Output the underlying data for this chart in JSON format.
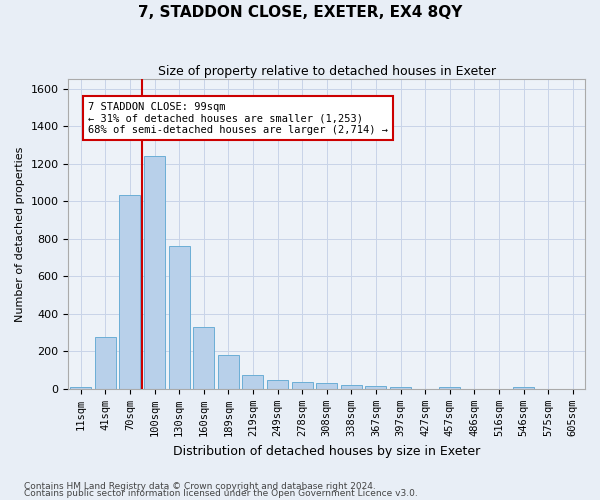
{
  "title": "7, STADDON CLOSE, EXETER, EX4 8QY",
  "subtitle": "Size of property relative to detached houses in Exeter",
  "xlabel": "Distribution of detached houses by size in Exeter",
  "ylabel": "Number of detached properties",
  "footer_line1": "Contains HM Land Registry data © Crown copyright and database right 2024.",
  "footer_line2": "Contains public sector information licensed under the Open Government Licence v3.0.",
  "categories": [
    "11sqm",
    "41sqm",
    "70sqm",
    "100sqm",
    "130sqm",
    "160sqm",
    "189sqm",
    "219sqm",
    "249sqm",
    "278sqm",
    "308sqm",
    "338sqm",
    "367sqm",
    "397sqm",
    "427sqm",
    "457sqm",
    "486sqm",
    "516sqm",
    "546sqm",
    "575sqm",
    "605sqm"
  ],
  "values": [
    10,
    275,
    1035,
    1240,
    760,
    330,
    180,
    75,
    45,
    38,
    30,
    20,
    15,
    10,
    0,
    12,
    0,
    0,
    12,
    0,
    0
  ],
  "bar_color": "#b8d0ea",
  "bar_edge_color": "#6baed6",
  "ylim": [
    0,
    1650
  ],
  "yticks": [
    0,
    200,
    400,
    600,
    800,
    1000,
    1200,
    1400,
    1600
  ],
  "vline_x_index": 2.5,
  "annotation_title": "7 STADDON CLOSE: 99sqm",
  "annotation_line2": "← 31% of detached houses are smaller (1,253)",
  "annotation_line3": "68% of semi-detached houses are larger (2,714) →",
  "annotation_box_color": "#cc0000",
  "vline_color": "#cc0000",
  "grid_color": "#c8d4e8",
  "bg_color": "#e8eef6",
  "plot_bg_color": "#edf2f8"
}
